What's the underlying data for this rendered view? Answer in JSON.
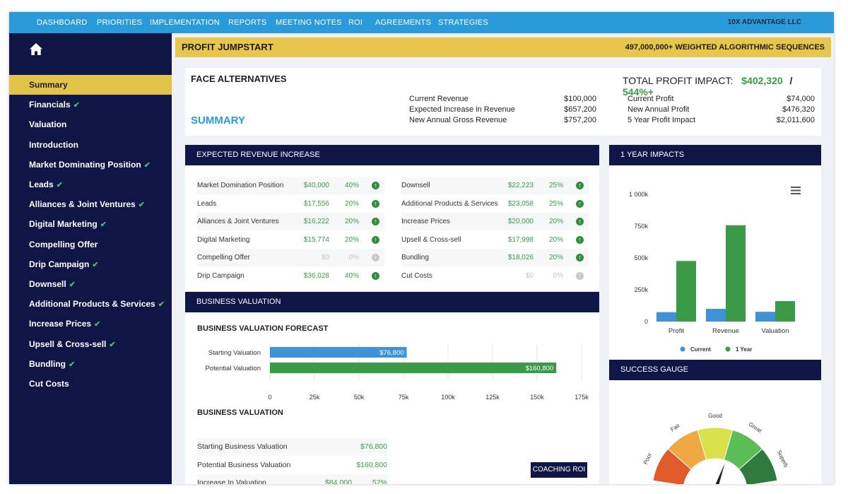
{
  "nav": {
    "items": [
      "DASHBOARD",
      "PRIORITIES",
      "IMPLEMENTATION",
      "REPORTS",
      "MEETING NOTES",
      "ROI",
      "AGREEMENTS",
      "STRATEGIES"
    ],
    "company": "10X ADVANTAGE LLC"
  },
  "sidebar": {
    "items": [
      {
        "label": "Summary",
        "checked": false,
        "active": true
      },
      {
        "label": "Financials",
        "checked": true
      },
      {
        "label": "Valuation",
        "checked": false
      },
      {
        "label": "Introduction",
        "checked": false
      },
      {
        "label": "Market Dominating Position",
        "checked": true
      },
      {
        "label": "Leads",
        "checked": true
      },
      {
        "label": "Alliances & Joint Ventures",
        "checked": true
      },
      {
        "label": "Digital Marketing",
        "checked": true
      },
      {
        "label": "Compelling Offer",
        "checked": false
      },
      {
        "label": "Drip Campaign",
        "checked": true
      },
      {
        "label": "Downsell",
        "checked": true
      },
      {
        "label": "Additional Products & Services",
        "checked": true
      },
      {
        "label": "Increase Prices",
        "checked": true
      },
      {
        "label": "Upsell & Cross-sell",
        "checked": true
      },
      {
        "label": "Bundling",
        "checked": true
      },
      {
        "label": "Cut Costs",
        "checked": false
      }
    ],
    "check_glyph": "✔"
  },
  "header": {
    "title": "PROFIT JUMPSTART",
    "right": "497,000,000+ WEIGHTED ALGORITHMIC SEQUENCES"
  },
  "summary": {
    "face_alternatives": "FACE ALTERNATIVES",
    "summary_label": "SUMMARY",
    "total_label": "TOTAL PROFIT IMPACT:",
    "total_value": "$402,320",
    "slash": "/",
    "total_pct": "544%+",
    "revenue": [
      {
        "label": "Current Revenue",
        "value": "$100,000"
      },
      {
        "label": "Expected Increase in Revenue",
        "value": "$657,200"
      },
      {
        "label": "New Annual Gross Revenue",
        "value": "$757,200"
      }
    ],
    "profit": [
      {
        "label": "Current Profit",
        "value": "$74,000"
      },
      {
        "label": "New Annual Profit",
        "value": "$476,320"
      },
      {
        "label": "5 Year Profit Impact",
        "value": "$2,011,600"
      }
    ]
  },
  "expected": {
    "title": "EXPECTED REVENUE INCREASE",
    "left": [
      {
        "label": "Market Domination Position",
        "value": "$40,000",
        "pct": "40%",
        "on": true
      },
      {
        "label": "Leads",
        "value": "$17,556",
        "pct": "20%",
        "on": true
      },
      {
        "label": "Alliances & Joint Ventures",
        "value": "$16,222",
        "pct": "20%",
        "on": true
      },
      {
        "label": "Digital Marketing",
        "value": "$15,774",
        "pct": "20%",
        "on": true
      },
      {
        "label": "Compelling Offer",
        "value": "$0",
        "pct": "0%",
        "on": false
      },
      {
        "label": "Drip Campaign",
        "value": "$36,028",
        "pct": "40%",
        "on": true
      }
    ],
    "right": [
      {
        "label": "Downsell",
        "value": "$22,223",
        "pct": "25%",
        "on": true
      },
      {
        "label": "Additional Products & Services",
        "value": "$23,058",
        "pct": "25%",
        "on": true
      },
      {
        "label": "Increase Prices",
        "value": "$20,000",
        "pct": "20%",
        "on": true
      },
      {
        "label": "Upsell & Cross-sell",
        "value": "$17,998",
        "pct": "20%",
        "on": true
      },
      {
        "label": "Bundling",
        "value": "$18,026",
        "pct": "20%",
        "on": true
      },
      {
        "label": "Cut Costs",
        "value": "$0",
        "pct": "0%",
        "on": false
      }
    ],
    "arrow_glyph": "↑"
  },
  "valuation": {
    "title": "BUSINESS VALUATION",
    "forecast_title": "BUSINESS VALUATION FORECAST",
    "section_title": "BUSINESS VALUATION",
    "rows": [
      {
        "label": "Starting Business Valuation",
        "value": "$76,800",
        "pct": ""
      },
      {
        "label": "Potential Business Valuation",
        "value": "$160,800",
        "pct": ""
      },
      {
        "label": "Increase In Valuation",
        "value": "$84,000",
        "pct": "52%"
      }
    ],
    "coaching_button": "COACHING ROI"
  },
  "impacts": {
    "title": "1 YEAR IMPACTS",
    "menu_icon": "hamburger-menu-icon"
  },
  "gauge": {
    "title": "SUCCESS GAUGE",
    "labels": [
      "Poor",
      "Fair",
      "Good",
      "Great",
      "Superb"
    ],
    "colors": [
      "#e05a2b",
      "#f0a843",
      "#d8e04a",
      "#5bbd55",
      "#2f7a3d"
    ],
    "level": 0.62
  },
  "chart_data": [
    {
      "type": "bar",
      "orientation": "horizontal",
      "title": "BUSINESS VALUATION FORECAST",
      "categories": [
        "Starting Valuation",
        "Potential Valuation"
      ],
      "values": [
        76800,
        160800
      ],
      "data_labels": [
        "$76,800",
        "$160,800"
      ],
      "colors": [
        "#3e92d6",
        "#3a9a48"
      ],
      "xlim": [
        0,
        175000
      ],
      "x_ticks": [
        "0",
        "25k",
        "50k",
        "75k",
        "100k",
        "125k",
        "150k",
        "175k"
      ],
      "grid": true
    },
    {
      "type": "bar",
      "title": "1 YEAR IMPACTS",
      "categories": [
        "Profit",
        "Revenue",
        "Valuation"
      ],
      "series": [
        {
          "name": "Current",
          "values": [
            74000,
            100000,
            76800
          ],
          "color": "#3e92d6"
        },
        {
          "name": "1 Year",
          "values": [
            476320,
            757200,
            160800
          ],
          "color": "#3a9a48"
        }
      ],
      "ylim": [
        0,
        1000000
      ],
      "y_ticks": [
        "1 000k",
        "750k",
        "500k",
        "250k",
        "0"
      ],
      "legend": "bottom",
      "grid": false
    }
  ]
}
